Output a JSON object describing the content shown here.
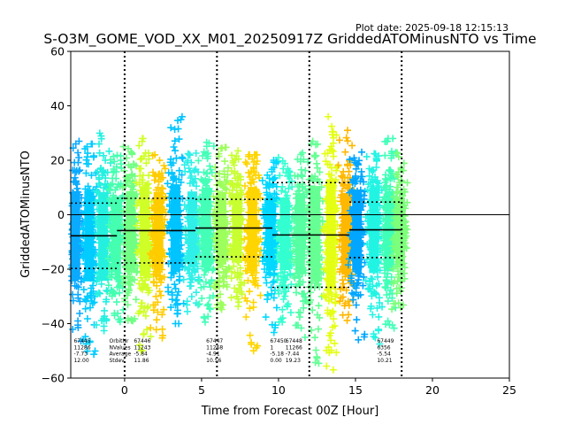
{
  "chart_data": {
    "type": "scatter",
    "title": "S-O3M_GOME_VOD_XX_M01_20250917Z GriddedATOMinusNTO vs Time",
    "plot_date": "Plot date: 2025-09-18 12:15:13",
    "xlabel": "Time from Forecast 00Z [Hour]",
    "ylabel": "GriddedATOMinusNTO",
    "xlim": [
      -3.5,
      25
    ],
    "ylim": [
      -60,
      60
    ],
    "xticks": [
      0,
      5,
      10,
      15,
      20,
      25
    ],
    "yticks": [
      -60,
      -40,
      -20,
      0,
      20,
      40,
      60
    ],
    "grid": false,
    "marker": "+",
    "vlines_dotted": [
      0,
      6,
      12,
      18
    ],
    "zero_line": 0,
    "bin_stats": [
      {
        "x0": -3.5,
        "x1": -0.5,
        "mean": -7.73,
        "p_hi": 4.27,
        "p_lo": -19.73
      },
      {
        "x0": -0.5,
        "x1": 4.6,
        "mean": -5.84,
        "p_hi": 6.02,
        "p_lo": -17.7
      },
      {
        "x0": 4.6,
        "x1": 9.6,
        "mean": -4.91,
        "p_hi": 5.65,
        "p_lo": -15.47
      },
      {
        "x0": 9.6,
        "x1": 14.6,
        "mean": -7.44,
        "p_hi": 11.79,
        "p_lo": -26.67
      },
      {
        "x0": 14.6,
        "x1": 18.0,
        "mean": -5.54,
        "p_hi": 4.67,
        "p_lo": -15.75
      }
    ],
    "orbits": [
      {
        "t": -3.2,
        "y_min": -48,
        "y_max": 27,
        "y_mean": -8,
        "color": "#0aaaff"
      },
      {
        "t": -2.3,
        "y_min": -52,
        "y_max": 26,
        "y_mean": -8,
        "color": "#00ccff"
      },
      {
        "t": -1.4,
        "y_min": -46,
        "y_max": 31,
        "y_mean": -8,
        "color": "#25f0e0"
      },
      {
        "t": -0.55,
        "y_min": -42,
        "y_max": 23,
        "y_mean": -7,
        "color": "#44ffb0"
      },
      {
        "t": 0.4,
        "y_min": -44,
        "y_max": 25,
        "y_mean": -6,
        "color": "#70ff84"
      },
      {
        "t": 1.3,
        "y_min": -50,
        "y_max": 28,
        "y_mean": -6,
        "color": "#d0ff28"
      },
      {
        "t": 2.2,
        "y_min": -46,
        "y_max": 22,
        "y_mean": -6,
        "color": "#ffcc00"
      },
      {
        "t": 3.3,
        "y_min": -40,
        "y_max": 36,
        "y_mean": -5,
        "color": "#00c4ff"
      },
      {
        "t": 4.4,
        "y_min": -38,
        "y_max": 26,
        "y_mean": -5,
        "color": "#2ff0e8"
      },
      {
        "t": 5.3,
        "y_min": -40,
        "y_max": 28,
        "y_mean": -5,
        "color": "#44ffb8"
      },
      {
        "t": 6.3,
        "y_min": -36,
        "y_max": 27,
        "y_mean": -5,
        "color": "#9cff5c"
      },
      {
        "t": 7.3,
        "y_min": -34,
        "y_max": 25,
        "y_mean": -5,
        "color": "#c8ff30"
      },
      {
        "t": 8.3,
        "y_min": -50,
        "y_max": 22,
        "y_mean": -5,
        "color": "#ffd500"
      },
      {
        "t": 9.5,
        "y_min": -44,
        "y_max": 20,
        "y_mean": -7,
        "color": "#00d8ff"
      },
      {
        "t": 10.4,
        "y_min": -42,
        "y_max": 21,
        "y_mean": -7,
        "color": "#33ffd0"
      },
      {
        "t": 11.4,
        "y_min": -46,
        "y_max": 24,
        "y_mean": -7,
        "color": "#56ffa2"
      },
      {
        "t": 12.4,
        "y_min": -56,
        "y_max": 27,
        "y_mean": -7,
        "color": "#66ff94"
      },
      {
        "t": 13.4,
        "y_min": -58,
        "y_max": 36,
        "y_mean": -7,
        "color": "#e4ff14"
      },
      {
        "t": 14.4,
        "y_min": -40,
        "y_max": 31,
        "y_mean": -7,
        "color": "#ffb800"
      },
      {
        "t": 15.1,
        "y_min": -46,
        "y_max": 23,
        "y_mean": -6,
        "color": "#00a6ff"
      },
      {
        "t": 16.2,
        "y_min": -48,
        "y_max": 25,
        "y_mean": -6,
        "color": "#22f4e4"
      },
      {
        "t": 17.2,
        "y_min": -42,
        "y_max": 28,
        "y_mean": -6,
        "color": "#40ffb8"
      },
      {
        "t": 17.9,
        "y_min": -35,
        "y_max": 24,
        "y_mean": -6,
        "color": "#7cff7a"
      }
    ],
    "stat_blocks": [
      {
        "x": -3.3,
        "lines": [
          "67445",
          "11286",
          "-7.73",
          "12.00"
        ]
      },
      {
        "x": -1.0,
        "lines": [
          "OrbitNr",
          "NValues",
          "Average",
          "Stdev"
        ]
      },
      {
        "x": 0.6,
        "lines": [
          "67446",
          "11243",
          "-5.84",
          "11.86"
        ]
      },
      {
        "x": 5.3,
        "lines": [
          "67447",
          "11268",
          "-4.91",
          "10.56"
        ]
      },
      {
        "x": 9.45,
        "lines": [
          "67450",
          "1",
          "-5.18",
          "0.00"
        ]
      },
      {
        "x": 10.45,
        "lines": [
          "67448",
          "11266",
          "-7.44",
          "19.23"
        ]
      },
      {
        "x": 16.4,
        "lines": [
          "67449",
          "6356",
          "-5.54",
          "10.21"
        ]
      }
    ]
  }
}
